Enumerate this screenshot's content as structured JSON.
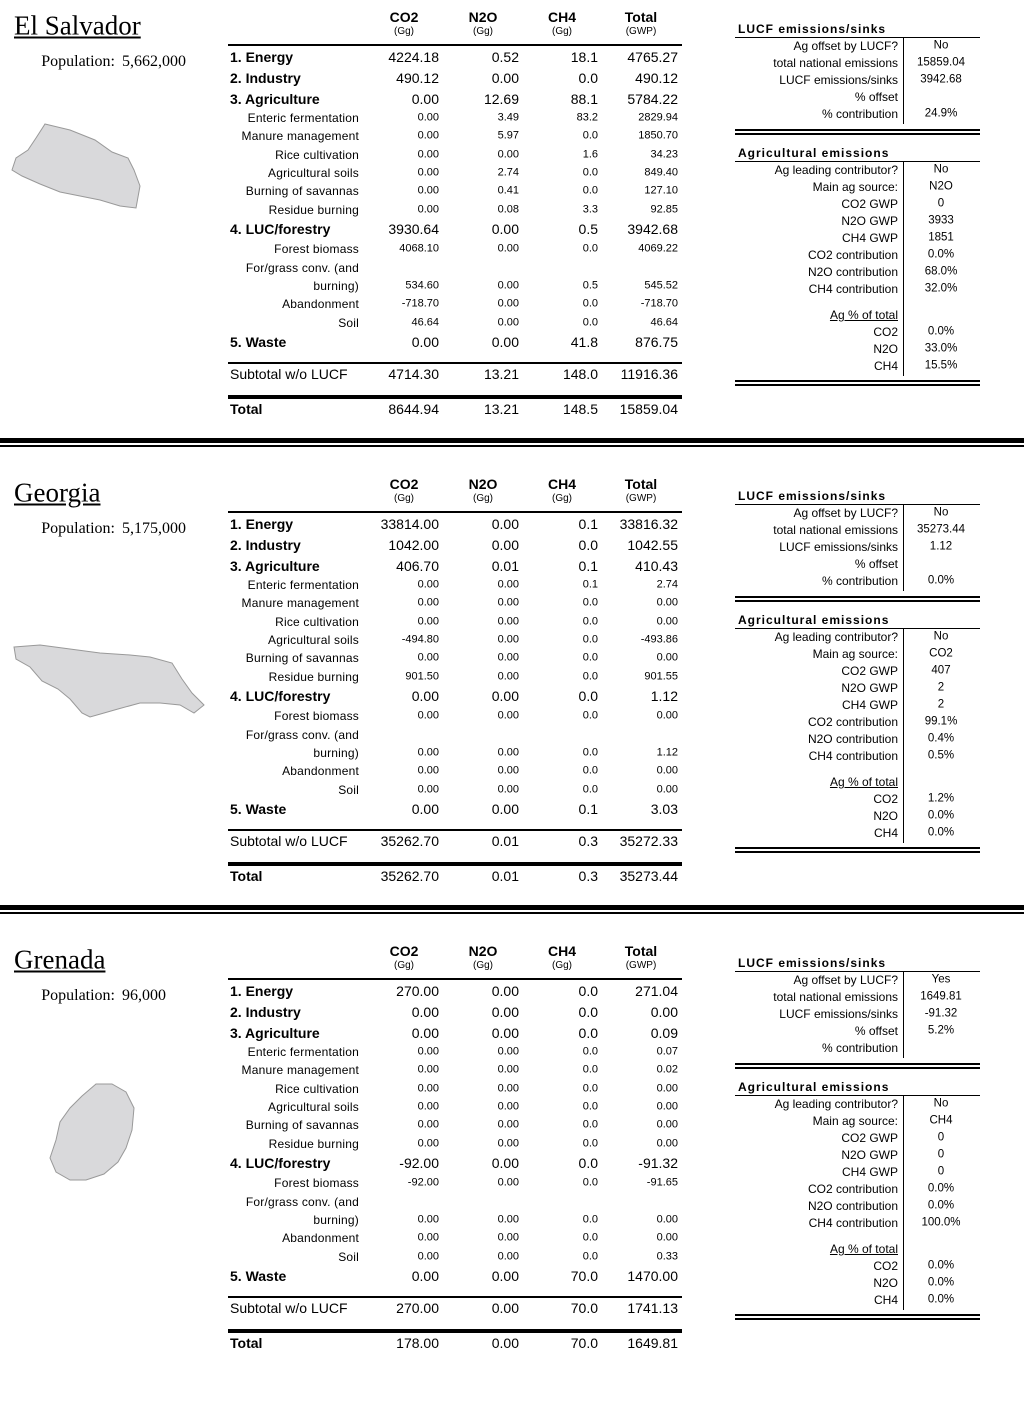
{
  "countries": [
    {
      "name": "El Salvador",
      "population_label": "Population:",
      "population": "5,662,000",
      "columns": [
        {
          "name": "CO2",
          "unit": "(Gg)"
        },
        {
          "name": "N2O",
          "unit": "(Gg)"
        },
        {
          "name": "CH4",
          "unit": "(Gg)"
        },
        {
          "name": "Total",
          "unit": "(GWP)"
        }
      ],
      "rows": [
        {
          "label": "1. Energy",
          "bold": true,
          "values": [
            "4224.18",
            "0.52",
            "18.1",
            "4765.27"
          ]
        },
        {
          "label": "2. Industry",
          "bold": true,
          "values": [
            "490.12",
            "0.00",
            "0.0",
            "490.12"
          ]
        },
        {
          "label": "3. Agriculture",
          "bold": true,
          "values": [
            "0.00",
            "12.69",
            "88.1",
            "5784.22"
          ]
        },
        {
          "label": "Enteric fermentation",
          "values": [
            "0.00",
            "3.49",
            "83.2",
            "2829.94"
          ]
        },
        {
          "label": "Manure management",
          "values": [
            "0.00",
            "5.97",
            "0.0",
            "1850.70"
          ]
        },
        {
          "label": "Rice cultivation",
          "values": [
            "0.00",
            "0.00",
            "1.6",
            "34.23"
          ]
        },
        {
          "label": "Agricultural soils",
          "values": [
            "0.00",
            "2.74",
            "0.0",
            "849.40"
          ]
        },
        {
          "label": "Burning of savannas",
          "values": [
            "0.00",
            "0.41",
            "0.0",
            "127.10"
          ]
        },
        {
          "label": "Residue burning",
          "values": [
            "0.00",
            "0.08",
            "3.3",
            "92.85"
          ]
        },
        {
          "label": "4. LUC/forestry",
          "bold": true,
          "values": [
            "3930.64",
            "0.00",
            "0.5",
            "3942.68"
          ]
        },
        {
          "label": "Forest biomass",
          "values": [
            "4068.10",
            "0.00",
            "0.0",
            "4069.22"
          ]
        },
        {
          "label": "For/grass conv. (and burning)",
          "values": [
            "534.60",
            "0.00",
            "0.5",
            "545.52"
          ]
        },
        {
          "label": "Abandonment",
          "values": [
            "-718.70",
            "0.00",
            "0.0",
            "-718.70"
          ]
        },
        {
          "label": "Soil",
          "values": [
            "46.64",
            "0.00",
            "0.0",
            "46.64"
          ]
        },
        {
          "label": "5. Waste",
          "bold": true,
          "values": [
            "0.00",
            "0.00",
            "41.8",
            "876.75"
          ]
        }
      ],
      "subtotal": {
        "label": "Subtotal w/o LUCF",
        "values": [
          "4714.30",
          "13.21",
          "148.0",
          "11916.36"
        ]
      },
      "total": {
        "label": "Total",
        "values": [
          "8644.94",
          "13.21",
          "148.5",
          "15859.04"
        ]
      },
      "lucf": {
        "title": "LUCF emissions/sinks",
        "rows": [
          {
            "label": "Ag offset by LUCF?",
            "value": "No"
          },
          {
            "label": "total national emissions",
            "value": "15859.04"
          },
          {
            "label": "LUCF emissions/sinks",
            "value": "3942.68"
          },
          {
            "label": "% offset"
          },
          {
            "label": "% contribution",
            "value": "24.9%"
          }
        ]
      },
      "ag": {
        "title": "Agricultural emissions",
        "rows": [
          {
            "label": "Ag leading contributor?",
            "value": "No"
          },
          {
            "label": "Main ag source:",
            "value": "N2O"
          },
          {
            "label": "CO2 GWP",
            "value": "0"
          },
          {
            "label": "N2O GWP",
            "value": "3933"
          },
          {
            "label": "CH4 GWP",
            "value": "1851"
          },
          {
            "label": "CO2 contribution",
            "value": "0.0%"
          },
          {
            "label": "N2O contribution",
            "value": "68.0%"
          },
          {
            "label": "CH4 contribution",
            "value": "32.0%"
          }
        ]
      },
      "ag_share": {
        "title": "Ag % of total",
        "rows": [
          {
            "label": "CO2",
            "value": "0.0%"
          },
          {
            "label": "N2O",
            "value": "33.0%"
          },
          {
            "label": "CH4",
            "value": "15.5%"
          }
        ]
      }
    },
    {
      "name": "Georgia",
      "population_label": "Population:",
      "population": "5,175,000",
      "columns": [
        {
          "name": "CO2",
          "unit": "(Gg)"
        },
        {
          "name": "N2O",
          "unit": "(Gg)"
        },
        {
          "name": "CH4",
          "unit": "(Gg)"
        },
        {
          "name": "Total",
          "unit": "(GWP)"
        }
      ],
      "rows": [
        {
          "label": "1. Energy",
          "bold": true,
          "values": [
            "33814.00",
            "0.00",
            "0.1",
            "33816.32"
          ]
        },
        {
          "label": "2. Industry",
          "bold": true,
          "values": [
            "1042.00",
            "0.00",
            "0.0",
            "1042.55"
          ]
        },
        {
          "label": "3. Agriculture",
          "bold": true,
          "values": [
            "406.70",
            "0.01",
            "0.1",
            "410.43"
          ]
        },
        {
          "label": "Enteric fermentation",
          "values": [
            "0.00",
            "0.00",
            "0.1",
            "2.74"
          ]
        },
        {
          "label": "Manure management",
          "values": [
            "0.00",
            "0.00",
            "0.0",
            "0.00"
          ]
        },
        {
          "label": "Rice cultivation",
          "values": [
            "0.00",
            "0.00",
            "0.0",
            "0.00"
          ]
        },
        {
          "label": "Agricultural soils",
          "values": [
            "-494.80",
            "0.00",
            "0.0",
            "-493.86"
          ]
        },
        {
          "label": "Burning of savannas",
          "values": [
            "0.00",
            "0.00",
            "0.0",
            "0.00"
          ]
        },
        {
          "label": "Residue burning",
          "values": [
            "901.50",
            "0.00",
            "0.0",
            "901.55"
          ]
        },
        {
          "label": "4. LUC/forestry",
          "bold": true,
          "values": [
            "0.00",
            "0.00",
            "0.0",
            "1.12"
          ]
        },
        {
          "label": "Forest biomass",
          "values": [
            "0.00",
            "0.00",
            "0.0",
            "0.00"
          ]
        },
        {
          "label": "For/grass conv. (and burning)",
          "values": [
            "0.00",
            "0.00",
            "0.0",
            "1.12"
          ]
        },
        {
          "label": "Abandonment",
          "values": [
            "0.00",
            "0.00",
            "0.0",
            "0.00"
          ]
        },
        {
          "label": "Soil",
          "values": [
            "0.00",
            "0.00",
            "0.0",
            "0.00"
          ]
        },
        {
          "label": "5. Waste",
          "bold": true,
          "values": [
            "0.00",
            "0.00",
            "0.1",
            "3.03"
          ]
        }
      ],
      "subtotal": {
        "label": "Subtotal w/o LUCF",
        "values": [
          "35262.70",
          "0.01",
          "0.3",
          "35272.33"
        ]
      },
      "total": {
        "label": "Total",
        "values": [
          "35262.70",
          "0.01",
          "0.3",
          "35273.44"
        ]
      },
      "lucf": {
        "title": "LUCF emissions/sinks",
        "rows": [
          {
            "label": "Ag offset by LUCF?",
            "value": "No"
          },
          {
            "label": "total national emissions",
            "value": "35273.44"
          },
          {
            "label": "LUCF emissions/sinks",
            "value": "1.12"
          },
          {
            "label": "% offset"
          },
          {
            "label": "% contribution",
            "value": "0.0%"
          }
        ]
      },
      "ag": {
        "title": "Agricultural emissions",
        "rows": [
          {
            "label": "Ag leading contributor?",
            "value": "No"
          },
          {
            "label": "Main ag source:",
            "value": "CO2"
          },
          {
            "label": "CO2 GWP",
            "value": "407"
          },
          {
            "label": "N2O GWP",
            "value": "2"
          },
          {
            "label": "CH4 GWP",
            "value": "2"
          },
          {
            "label": "CO2 contribution",
            "value": "99.1%"
          },
          {
            "label": "N2O contribution",
            "value": "0.4%"
          },
          {
            "label": "CH4 contribution",
            "value": "0.5%"
          }
        ]
      },
      "ag_share": {
        "title": "Ag % of total",
        "rows": [
          {
            "label": "CO2",
            "value": "1.2%"
          },
          {
            "label": "N2O",
            "value": "0.0%"
          },
          {
            "label": "CH4",
            "value": "0.0%"
          }
        ]
      }
    },
    {
      "name": "Grenada",
      "population_label": "Population:",
      "population": "96,000",
      "columns": [
        {
          "name": "CO2",
          "unit": "(Gg)"
        },
        {
          "name": "N2O",
          "unit": "(Gg)"
        },
        {
          "name": "CH4",
          "unit": "(Gg)"
        },
        {
          "name": "Total",
          "unit": "(GWP)"
        }
      ],
      "rows": [
        {
          "label": "1. Energy",
          "bold": true,
          "values": [
            "270.00",
            "0.00",
            "0.0",
            "271.04"
          ]
        },
        {
          "label": "2. Industry",
          "bold": true,
          "values": [
            "0.00",
            "0.00",
            "0.0",
            "0.00"
          ]
        },
        {
          "label": "3. Agriculture",
          "bold": true,
          "values": [
            "0.00",
            "0.00",
            "0.0",
            "0.09"
          ]
        },
        {
          "label": "Enteric fermentation",
          "values": [
            "0.00",
            "0.00",
            "0.0",
            "0.07"
          ]
        },
        {
          "label": "Manure management",
          "values": [
            "0.00",
            "0.00",
            "0.0",
            "0.02"
          ]
        },
        {
          "label": "Rice cultivation",
          "values": [
            "0.00",
            "0.00",
            "0.0",
            "0.00"
          ]
        },
        {
          "label": "Agricultural soils",
          "values": [
            "0.00",
            "0.00",
            "0.0",
            "0.00"
          ]
        },
        {
          "label": "Burning of savannas",
          "values": [
            "0.00",
            "0.00",
            "0.0",
            "0.00"
          ]
        },
        {
          "label": "Residue burning",
          "values": [
            "0.00",
            "0.00",
            "0.0",
            "0.00"
          ]
        },
        {
          "label": "4. LUC/forestry",
          "bold": true,
          "values": [
            "-92.00",
            "0.00",
            "0.0",
            "-91.32"
          ]
        },
        {
          "label": "Forest biomass",
          "values": [
            "-92.00",
            "0.00",
            "0.0",
            "-91.65"
          ]
        },
        {
          "label": "For/grass conv. (and burning)",
          "values": [
            "0.00",
            "0.00",
            "0.0",
            "0.00"
          ]
        },
        {
          "label": "Abandonment",
          "values": [
            "0.00",
            "0.00",
            "0.0",
            "0.00"
          ]
        },
        {
          "label": "Soil",
          "values": [
            "0.00",
            "0.00",
            "0.0",
            "0.33"
          ]
        },
        {
          "label": "5. Waste",
          "bold": true,
          "values": [
            "0.00",
            "0.00",
            "70.0",
            "1470.00"
          ]
        }
      ],
      "subtotal": {
        "label": "Subtotal w/o LUCF",
        "values": [
          "270.00",
          "0.00",
          "70.0",
          "1741.13"
        ]
      },
      "total": {
        "label": "Total",
        "values": [
          "178.00",
          "0.00",
          "70.0",
          "1649.81"
        ]
      },
      "lucf": {
        "title": "LUCF emissions/sinks",
        "rows": [
          {
            "label": "Ag offset by LUCF?",
            "value": "Yes"
          },
          {
            "label": "total national emissions",
            "value": "1649.81"
          },
          {
            "label": "LUCF emissions/sinks",
            "value": "-91.32"
          },
          {
            "label": "% offset",
            "value": "5.2%"
          },
          {
            "label": "% contribution"
          }
        ]
      },
      "ag": {
        "title": "Agricultural emissions",
        "rows": [
          {
            "label": "Ag leading contributor?",
            "value": "No"
          },
          {
            "label": "Main ag source:",
            "value": "CH4"
          },
          {
            "label": "CO2 GWP",
            "value": "0"
          },
          {
            "label": "N2O GWP",
            "value": "0"
          },
          {
            "label": "CH4 GWP",
            "value": "0"
          },
          {
            "label": "CO2 contribution",
            "value": "0.0%"
          },
          {
            "label": "N2O contribution",
            "value": "0.0%"
          },
          {
            "label": "CH4 contribution",
            "value": "100.0%"
          }
        ]
      },
      "ag_share": {
        "title": "Ag % of total",
        "rows": [
          {
            "label": "CO2",
            "value": "0.0%"
          },
          {
            "label": "N2O",
            "value": "0.0%"
          },
          {
            "label": "CH4",
            "value": "0.0%"
          }
        ]
      }
    }
  ]
}
